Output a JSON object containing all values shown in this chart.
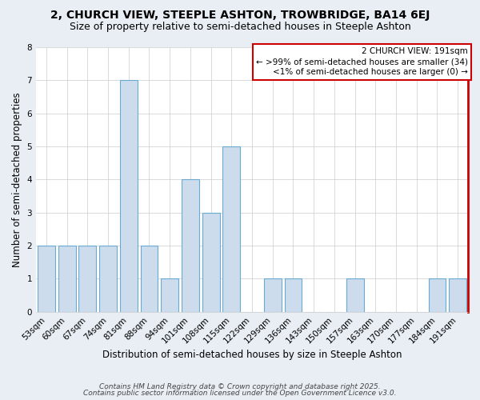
{
  "title1": "2, CHURCH VIEW, STEEPLE ASHTON, TROWBRIDGE, BA14 6EJ",
  "title2": "Size of property relative to semi-detached houses in Steeple Ashton",
  "xlabel": "Distribution of semi-detached houses by size in Steeple Ashton",
  "ylabel": "Number of semi-detached properties",
  "categories": [
    "53sqm",
    "60sqm",
    "67sqm",
    "74sqm",
    "81sqm",
    "88sqm",
    "94sqm",
    "101sqm",
    "108sqm",
    "115sqm",
    "122sqm",
    "129sqm",
    "136sqm",
    "143sqm",
    "150sqm",
    "157sqm",
    "163sqm",
    "170sqm",
    "177sqm",
    "184sqm",
    "191sqm"
  ],
  "values": [
    2,
    2,
    2,
    2,
    7,
    2,
    1,
    4,
    3,
    5,
    0,
    1,
    1,
    0,
    0,
    1,
    0,
    0,
    0,
    1,
    1
  ],
  "bar_color": "#ccdcec",
  "bar_edge_color": "#6baad0",
  "ylim": [
    0,
    8
  ],
  "yticks": [
    0,
    1,
    2,
    3,
    4,
    5,
    6,
    7,
    8
  ],
  "legend_title": "2 CHURCH VIEW: 191sqm",
  "legend_line1": "← >99% of semi-detached houses are smaller (34)",
  "legend_line2": "<1% of semi-detached houses are larger (0) →",
  "footer1": "Contains HM Land Registry data © Crown copyright and database right 2025.",
  "footer2": "Contains public sector information licensed under the Open Government Licence v3.0.",
  "background_color": "#e8eef4",
  "plot_bg_color": "#ffffff",
  "grid_color": "#cccccc",
  "red_border_color": "#cc0000",
  "title1_fontsize": 10,
  "title2_fontsize": 9,
  "xlabel_fontsize": 8.5,
  "ylabel_fontsize": 8.5,
  "tick_fontsize": 7.5,
  "legend_fontsize": 7.5,
  "footer_fontsize": 6.5
}
